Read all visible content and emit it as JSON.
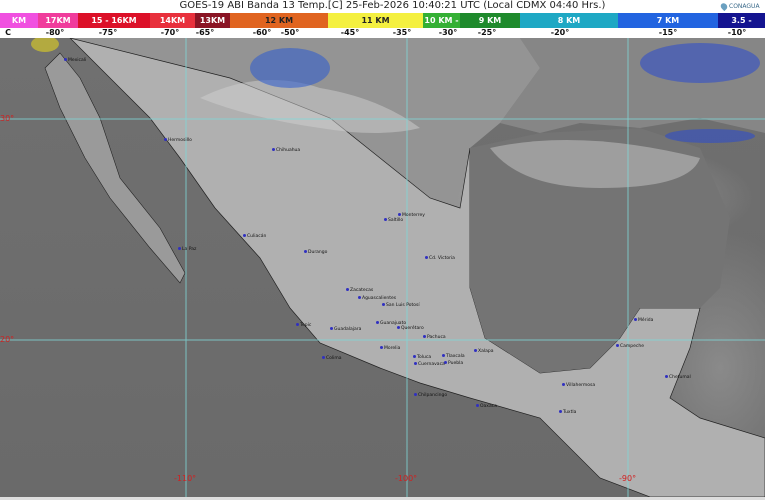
{
  "header": {
    "title": "GOES-19 ABI Banda 13 Temp.[C] 25-Feb-2026 10:40:21 UTC (Local CDMX  04:40 Hrs.)",
    "logo_text": "CONAGUA"
  },
  "color_scale": {
    "segments": [
      {
        "label": "KM",
        "color": "#f050e0"
      },
      {
        "label": "17KM",
        "color": "#f03c9c"
      },
      {
        "label": "15 - 16KM",
        "color": "#dc1028"
      },
      {
        "label": "14KM",
        "color": "#e8303c"
      },
      {
        "label": "13KM",
        "color": "#8a1424"
      },
      {
        "label": "12 KM",
        "color": "#e06420"
      },
      {
        "label": "11 KM",
        "color": "#f4f040"
      },
      {
        "label": "10 KM -",
        "color": "#34b034"
      },
      {
        "label": "9 KM",
        "color": "#1e8a2c"
      },
      {
        "label": "8 KM",
        "color": "#1ea8c4"
      },
      {
        "label": "7 KM",
        "color": "#2264e0"
      },
      {
        "label": "3.5 -",
        "color": "#141490"
      }
    ],
    "temperature_unit": "C",
    "temperatures": [
      "-80°",
      "-75°",
      "-70°",
      "-65°",
      "-60°",
      "-50°",
      "-45°",
      "-35°",
      "-30°",
      "-25°",
      "-20°",
      "-15°",
      "-10°"
    ]
  },
  "map": {
    "grid_color": "#7fd8d8",
    "latitude_labels": [
      "30°",
      "20°"
    ],
    "longitude_labels": [
      "-110°",
      "-100°",
      "-90°"
    ],
    "cities": [
      "Mexicali",
      "Hermosillo",
      "Chihuahua",
      "Culiacán",
      "La Paz",
      "Durango",
      "Saltillo",
      "Monterrey",
      "Cd. Victoria",
      "Zacatecas",
      "San Luis Potosí",
      "Aguascalientes",
      "Tepic",
      "Guadalajara",
      "Guanajuato",
      "Querétaro",
      "Pachuca",
      "Colima",
      "Morelia",
      "Toluca",
      "Tlaxcala",
      "Puebla",
      "Cuernavaca",
      "Xalapa",
      "Chilpancingo",
      "Oaxaca",
      "Villahermosa",
      "Tuxtla",
      "Campeche",
      "Mérida",
      "Chetumal"
    ]
  }
}
